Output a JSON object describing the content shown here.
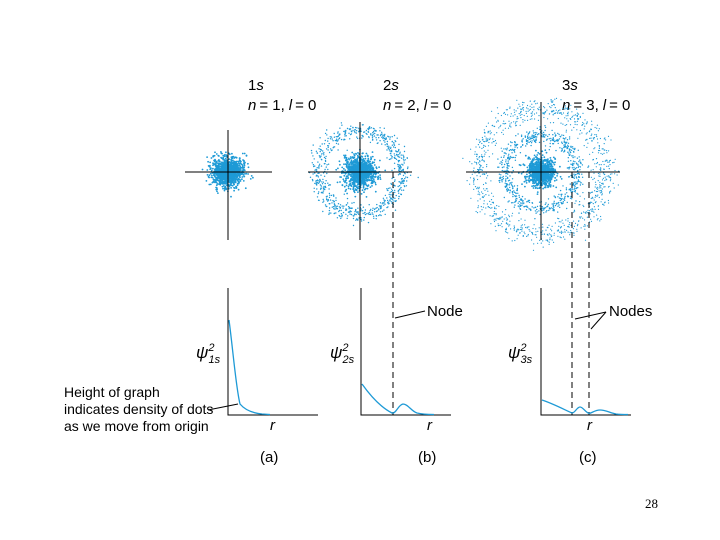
{
  "slide_number": "28",
  "note": "Height of graph indicates density of dots as we move from origin",
  "node_label": "Node",
  "nodes_label": "Nodes",
  "colors": {
    "dots": "#1e9ad6",
    "curve": "#1e9ad6",
    "axes": "#000000"
  },
  "orbitals": [
    {
      "name_num": "1",
      "name_letter": "s",
      "n_label": "n",
      "n_value": "= 1,",
      "l_label": "l",
      "l_value": "= 0",
      "psi": "ψ",
      "psi_sup": "2",
      "psi_sub": "1s",
      "r_label": "r",
      "panel": "(a)"
    },
    {
      "name_num": "2",
      "name_letter": "s",
      "n_label": "n",
      "n_value": "= 2,",
      "l_label": "l",
      "l_value": "= 0",
      "psi": "ψ",
      "psi_sup": "2",
      "psi_sub": "2s",
      "r_label": "r",
      "panel": "(b)"
    },
    {
      "name_num": "3",
      "name_letter": "s",
      "n_label": "n",
      "n_value": "= 3,",
      "l_label": "l",
      "l_value": "= 0",
      "psi": "ψ",
      "psi_sup": "2",
      "psi_sub": "3s",
      "r_label": "r",
      "panel": "(c)"
    }
  ]
}
